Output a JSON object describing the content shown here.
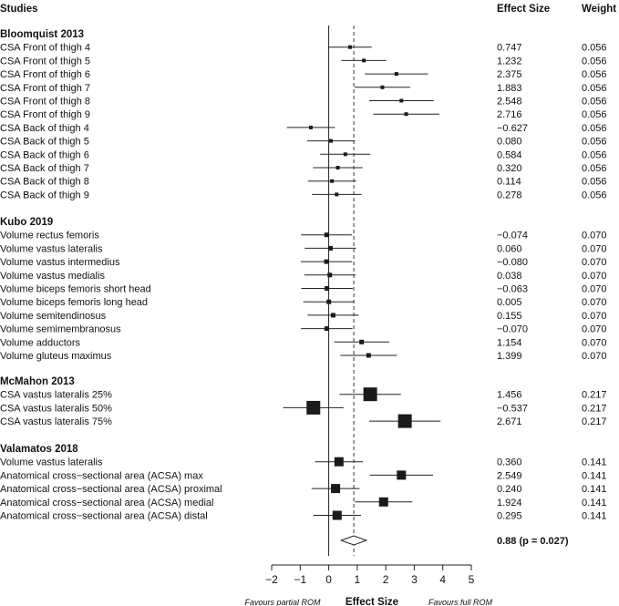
{
  "header": {
    "studies": "Studies",
    "effect_size": "Effect Size",
    "weight": "Weight"
  },
  "footer": {
    "favours_left": "Favours partial ROM",
    "xlabel": "Effect Size",
    "favours_right": "Favours full ROM"
  },
  "summary": {
    "estimate": 0.88,
    "ci": [
      0.44,
      1.32
    ],
    "text": "0.88 (p = 0.027)"
  },
  "chart_data": {
    "type": "forest",
    "xlim": [
      -2,
      5
    ],
    "xticks": [
      "−2",
      "−1",
      "0",
      "1",
      "2",
      "3",
      "4",
      "5"
    ],
    "xtick_values": [
      -2,
      -1,
      0,
      1,
      2,
      3,
      4,
      5
    ],
    "reference_line": 0,
    "summary_line": 0.88,
    "groups": [
      {
        "name": "Bloomquist 2013",
        "rows": [
          {
            "label": "CSA Front of thigh 4",
            "es": 0.747,
            "es_text": "0.747",
            "weight": "0.056",
            "ci": [
              -0.02,
              1.51
            ]
          },
          {
            "label": "CSA Front of thigh 5",
            "es": 1.232,
            "es_text": "1.232",
            "weight": "0.056",
            "ci": [
              0.44,
              2.02
            ]
          },
          {
            "label": "CSA Front of thigh 6",
            "es": 2.375,
            "es_text": "2.375",
            "weight": "0.056",
            "ci": [
              1.27,
              3.48
            ]
          },
          {
            "label": "CSA Front of thigh 7",
            "es": 1.883,
            "es_text": "1.883",
            "weight": "0.056",
            "ci": [
              0.91,
              2.86
            ]
          },
          {
            "label": "CSA Front of thigh 8",
            "es": 2.548,
            "es_text": "2.548",
            "weight": "0.056",
            "ci": [
              1.42,
              3.68
            ]
          },
          {
            "label": "CSA Front of thigh 9",
            "es": 2.716,
            "es_text": "2.716",
            "weight": "0.056",
            "ci": [
              1.56,
              3.88
            ]
          },
          {
            "label": "CSA Back of thigh 4",
            "es": -0.627,
            "es_text": "−0.627",
            "weight": "0.056",
            "ci": [
              -1.47,
              0.22
            ]
          },
          {
            "label": "CSA Back of thigh 5",
            "es": 0.08,
            "es_text": "0.080",
            "weight": "0.056",
            "ci": [
              -0.76,
              0.92
            ]
          },
          {
            "label": "CSA Back of thigh 6",
            "es": 0.584,
            "es_text": "0.584",
            "weight": "0.056",
            "ci": [
              -0.3,
              1.46
            ]
          },
          {
            "label": "CSA Back of thigh 7",
            "es": 0.32,
            "es_text": "0.320",
            "weight": "0.056",
            "ci": [
              -0.55,
              1.19
            ]
          },
          {
            "label": "CSA Back of thigh 8",
            "es": 0.114,
            "es_text": "0.114",
            "weight": "0.056",
            "ci": [
              -0.73,
              0.96
            ]
          },
          {
            "label": "CSA Back of thigh 9",
            "es": 0.278,
            "es_text": "0.278",
            "weight": "0.056",
            "ci": [
              -0.59,
              1.15
            ]
          }
        ]
      },
      {
        "name": "Kubo 2019",
        "rows": [
          {
            "label": "Volume rectus femoris",
            "es": -0.074,
            "es_text": "−0.074",
            "weight": "0.070",
            "ci": [
              -0.97,
              0.82
            ]
          },
          {
            "label": "Volume vastus lateralis",
            "es": 0.06,
            "es_text": "0.060",
            "weight": "0.070",
            "ci": [
              -0.84,
              0.96
            ]
          },
          {
            "label": "Volume vastus intermedius",
            "es": -0.08,
            "es_text": "−0.080",
            "weight": "0.070",
            "ci": [
              -0.98,
              0.82
            ]
          },
          {
            "label": "Volume vastus medialis",
            "es": 0.038,
            "es_text": "0.038",
            "weight": "0.070",
            "ci": [
              -0.86,
              0.94
            ]
          },
          {
            "label": "Volume biceps femoris short head",
            "es": -0.063,
            "es_text": "−0.063",
            "weight": "0.070",
            "ci": [
              -0.96,
              0.84
            ]
          },
          {
            "label": "Volume biceps femoris long head",
            "es": 0.005,
            "es_text": "0.005",
            "weight": "0.070",
            "ci": [
              -0.89,
              0.9
            ]
          },
          {
            "label": "Volume semitendinosus",
            "es": 0.155,
            "es_text": "0.155",
            "weight": "0.070",
            "ci": [
              -0.74,
              1.05
            ]
          },
          {
            "label": "Volume semimembranosus",
            "es": -0.07,
            "es_text": "−0.070",
            "weight": "0.070",
            "ci": [
              -0.97,
              0.83
            ]
          },
          {
            "label": "Volume adductors",
            "es": 1.154,
            "es_text": "1.154",
            "weight": "0.070",
            "ci": [
              0.19,
              2.12
            ]
          },
          {
            "label": "Volume gluteus maximus",
            "es": 1.399,
            "es_text": "1.399",
            "weight": "0.070",
            "ci": [
              0.41,
              2.39
            ]
          }
        ]
      },
      {
        "name": "McMahon 2013",
        "rows": [
          {
            "label": "CSA vastus lateralis 25%",
            "es": 1.456,
            "es_text": "1.456",
            "weight": "0.217",
            "ci": [
              0.38,
              2.53
            ]
          },
          {
            "label": "CSA vastus lateralis 50%",
            "es": -0.537,
            "es_text": "−0.537",
            "weight": "0.217",
            "ci": [
              -1.6,
              0.52
            ]
          },
          {
            "label": "CSA vastus lateralis 75%",
            "es": 2.671,
            "es_text": "2.671",
            "weight": "0.217",
            "ci": [
              1.42,
              3.92
            ]
          }
        ]
      },
      {
        "name": "Valamatos 2018",
        "rows": [
          {
            "label": "Volume vastus lateralis",
            "es": 0.36,
            "es_text": "0.360",
            "weight": "0.141",
            "ci": [
              -0.48,
              1.2
            ]
          },
          {
            "label": "Anatomical cross−sectional area (ACSA) max",
            "es": 2.549,
            "es_text": "2.549",
            "weight": "0.141",
            "ci": [
              1.44,
              3.66
            ]
          },
          {
            "label": "Anatomical cross−sectional area (ACSA) proximal",
            "es": 0.24,
            "es_text": "0.240",
            "weight": "0.141",
            "ci": [
              -0.6,
              1.08
            ]
          },
          {
            "label": "Anatomical cross−sectional area (ACSA) medial",
            "es": 1.924,
            "es_text": "1.924",
            "weight": "0.141",
            "ci": [
              0.92,
              2.93
            ]
          },
          {
            "label": "Anatomical cross−sectional area (ACSA) distal",
            "es": 0.295,
            "es_text": "0.295",
            "weight": "0.141",
            "ci": [
              -0.54,
              1.13
            ]
          }
        ]
      }
    ]
  }
}
